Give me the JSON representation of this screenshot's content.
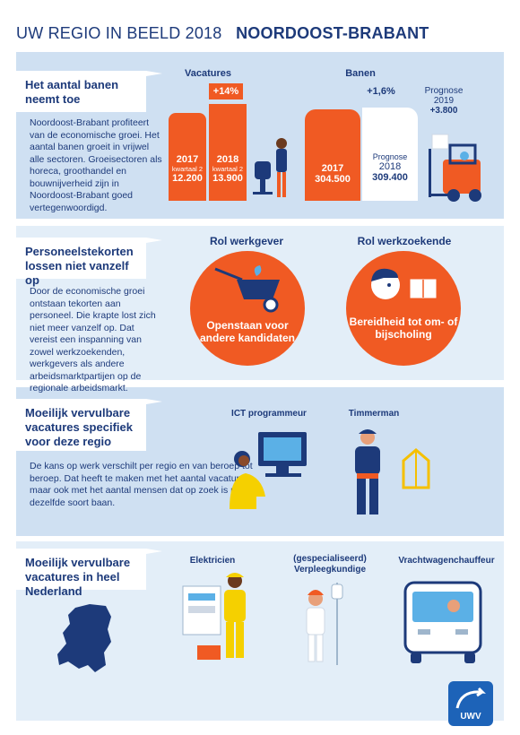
{
  "header": {
    "title_prefix": "UW REGIO IN BEELD 2018",
    "title_region": "NOORDOOST-BRABANT"
  },
  "section1": {
    "banner": "Het aantal banen neemt toe",
    "body": "Noordoost-Brabant profiteert van de economische groei. Het aantal banen groeit in vrijwel alle sectoren. Groeisectoren als horeca, groothandel en bouwnijverheid zijn in Noordoost-Brabant goed vertegenwoordigd.",
    "vacatures_label": "Vacatures",
    "vacatures_change": "+14%",
    "vac2017_year": "2017",
    "vac2017_sub": "kwartaal 2",
    "vac2017_value": "12.200",
    "vac2018_year": "2018",
    "vac2018_sub": "kwartaal 2",
    "vac2018_value": "13.900",
    "banen_label": "Banen",
    "banen_change": "+1,6%",
    "banen2017_year": "2017",
    "banen2017_value": "304.500",
    "banen2018_label": "Prognose",
    "banen2018_year": "2018",
    "banen2018_value": "309.400",
    "prognose2019_label": "Prognose",
    "prognose2019_year": "2019",
    "prognose2019_value": "+3.800"
  },
  "section2": {
    "banner": "Personeelstekorten lossen niet vanzelf op",
    "body": "Door de economische groei ontstaan tekorten aan personeel. Die krapte lost zich niet meer vanzelf op. Dat vereist een inspanning van zowel werkzoekenden, werkgevers als andere arbeidsmarktpartijen op de regionale arbeidsmarkt.",
    "werkgever_title": "Rol werkgever",
    "werkgever_text": "Openstaan voor andere kandidaten",
    "werkzoekende_title": "Rol werkzoekende",
    "werkzoekende_text": "Bereidheid tot om- of bijscholing"
  },
  "section3": {
    "banner": "Moeilijk vervulbare vacatures specifiek voor deze regio",
    "body": "De kans op werk verschilt per regio en van beroep tot beroep. Dat heeft te maken met het aantal vacatures, maar ook met het aantal mensen dat op zoek is naar dezelfde soort baan.",
    "job1": "ICT programmeur",
    "job2": "Timmerman"
  },
  "section4": {
    "banner": "Moeilijk vervulbare vacatures in heel Nederland",
    "job1": "Elektricien",
    "job2_line1": "(gespecialiseerd)",
    "job2_line2": "Verpleegkundige",
    "job3": "Vrachtwagenchauffeur"
  },
  "logo": {
    "text": "UWV"
  },
  "colors": {
    "navy": "#1d3a7a",
    "orange": "#f05a23",
    "band": "#cfe0f2"
  }
}
